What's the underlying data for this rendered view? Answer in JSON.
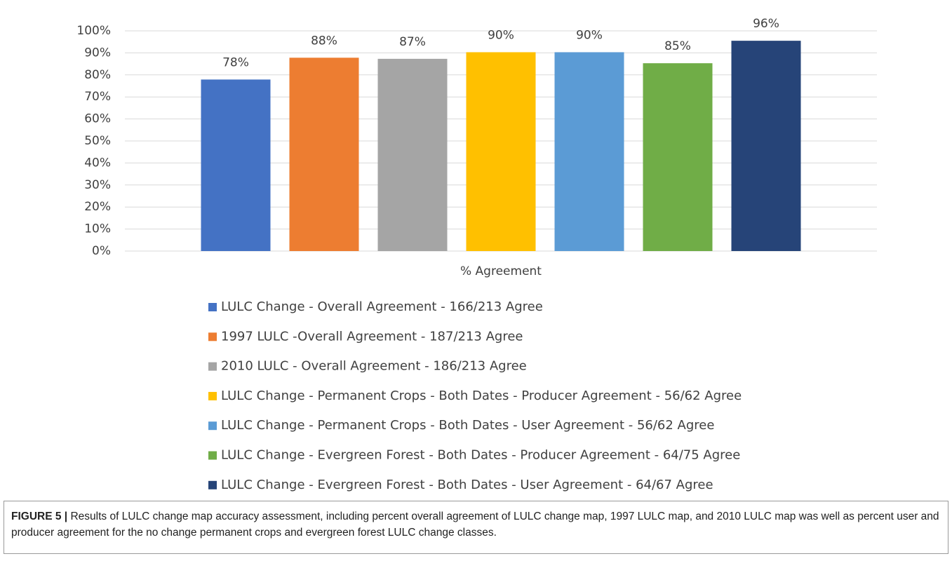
{
  "chart_data": {
    "type": "bar",
    "categories": [
      "% Agreement"
    ],
    "series": [
      {
        "name": "LULC Change - Overall Agreement - 166/213 Agree",
        "color": "#4472c4",
        "values": [
          77.9
        ],
        "value_labels": [
          "78%"
        ]
      },
      {
        "name": "1997 LULC -Overall Agreement - 187/213 Agree",
        "color": "#ed7d31",
        "values": [
          87.8
        ],
        "value_labels": [
          "88%"
        ]
      },
      {
        "name": "2010 LULC - Overall Agreement - 186/213 Agree",
        "color": "#a5a5a5",
        "values": [
          87.3
        ],
        "value_labels": [
          "87%"
        ]
      },
      {
        "name": "LULC Change - Permanent Crops - Both Dates - Producer Agreement - 56/62 Agree",
        "color": "#ffc000",
        "values": [
          90.3
        ],
        "value_labels": [
          "90%"
        ]
      },
      {
        "name": "LULC Change - Permanent Crops - Both Dates - User Agreement - 56/62 Agree",
        "color": "#5b9bd5",
        "values": [
          90.3
        ],
        "value_labels": [
          "90%"
        ]
      },
      {
        "name": "LULC Change - Evergreen Forest - Both Dates - Producer Agreement - 64/75 Agree",
        "color": "#70ad47",
        "values": [
          85.3
        ],
        "value_labels": [
          "85%"
        ]
      },
      {
        "name": "LULC Change - Evergreen Forest - Both Dates - User Agreement - 64/67 Agree",
        "color": "#264478",
        "values": [
          95.5
        ],
        "value_labels": [
          "96%"
        ]
      }
    ],
    "ylim": [
      0,
      100
    ],
    "yticks": [
      {
        "value": 0,
        "label": "0%"
      },
      {
        "value": 10,
        "label": "10%"
      },
      {
        "value": 20,
        "label": "20%"
      },
      {
        "value": 30,
        "label": "30%"
      },
      {
        "value": 40,
        "label": "40%"
      },
      {
        "value": 50,
        "label": "50%"
      },
      {
        "value": 60,
        "label": "60%"
      },
      {
        "value": 70,
        "label": "70%"
      },
      {
        "value": 80,
        "label": "80%"
      },
      {
        "value": 90,
        "label": "90%"
      },
      {
        "value": 100,
        "label": "100%"
      }
    ],
    "grid": true,
    "legend": "bottom"
  },
  "caption_label": "FIGURE 5 |",
  "caption": "Results of LULC change map accuracy assessment, including percent overall agreement of LULC change map, 1997 LULC map, and 2010 LULC map was well as percent user and producer agreement for the no change permanent crops and evergreen forest LULC change classes."
}
